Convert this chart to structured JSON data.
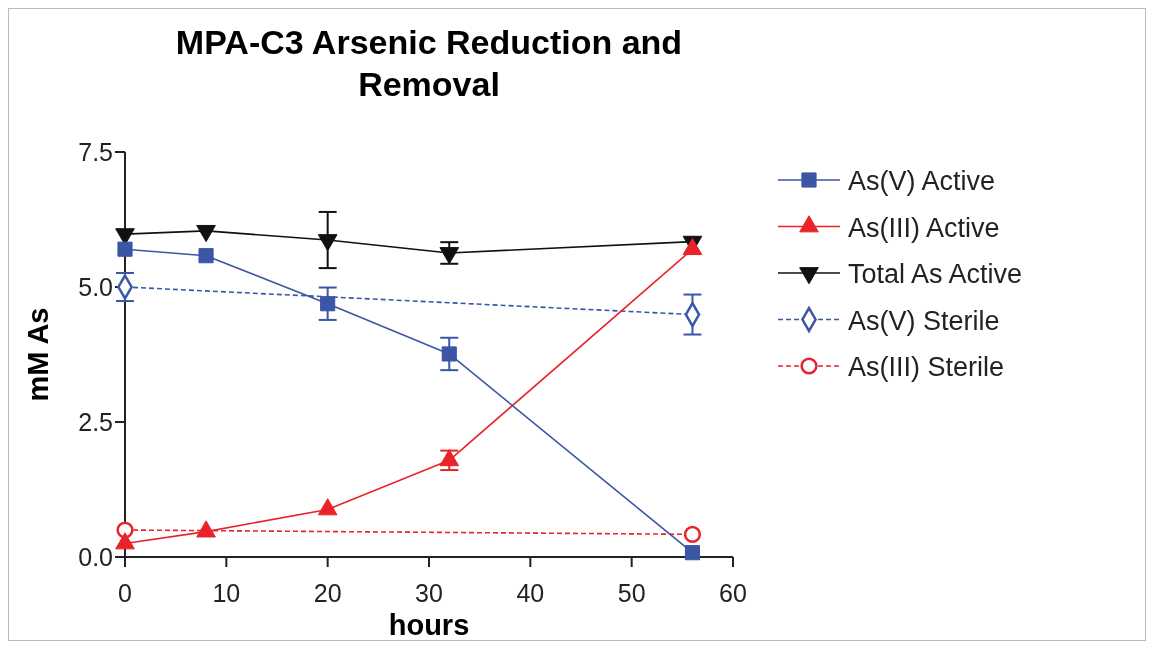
{
  "chart_data": {
    "type": "line",
    "title": "MPA-C3 Arsenic Reduction and Removal",
    "xlabel": "hours",
    "ylabel": "mM As",
    "x": [
      0,
      8,
      20,
      32,
      56
    ],
    "series": [
      {
        "name": "As(V) Active",
        "color": "#3a56a5",
        "marker": "square",
        "line_style": "solid",
        "values": [
          5.7,
          5.58,
          4.69,
          3.76,
          0.08
        ],
        "errors": [
          null,
          null,
          0.3,
          0.3,
          null
        ]
      },
      {
        "name": "As(III) Active",
        "color": "#e8232a",
        "marker": "triangle",
        "line_style": "solid",
        "values": [
          0.25,
          0.47,
          0.88,
          1.79,
          5.7
        ],
        "errors": [
          null,
          null,
          null,
          0.18,
          null
        ]
      },
      {
        "name": "Total As Active",
        "color": "#111111",
        "marker": "triangle-down",
        "line_style": "solid",
        "values": [
          5.98,
          6.04,
          5.87,
          5.63,
          5.84
        ],
        "errors": [
          null,
          null,
          0.52,
          0.2,
          null
        ]
      },
      {
        "name": "As(V) Sterile",
        "color": "#3a56a5",
        "marker": "diamond",
        "line_style": "dashed",
        "values": [
          5.0,
          null,
          null,
          null,
          4.49
        ],
        "errors": [
          0.26,
          null,
          null,
          null,
          0.37
        ]
      },
      {
        "name": "As(III) Sterile",
        "color": "#e8232a",
        "marker": "circle",
        "line_style": "dashed",
        "values": [
          0.5,
          null,
          null,
          null,
          0.42
        ]
      }
    ],
    "xlim": [
      0,
      60
    ],
    "xticks": [
      0,
      10,
      20,
      30,
      40,
      50,
      60
    ],
    "ylim": [
      0,
      7.5
    ],
    "yticks": [
      {
        "value": 0,
        "label": "0.0"
      },
      2.5,
      {
        "value": 5,
        "label": "5.0"
      },
      7.5
    ],
    "grid": false,
    "legend": "right"
  }
}
